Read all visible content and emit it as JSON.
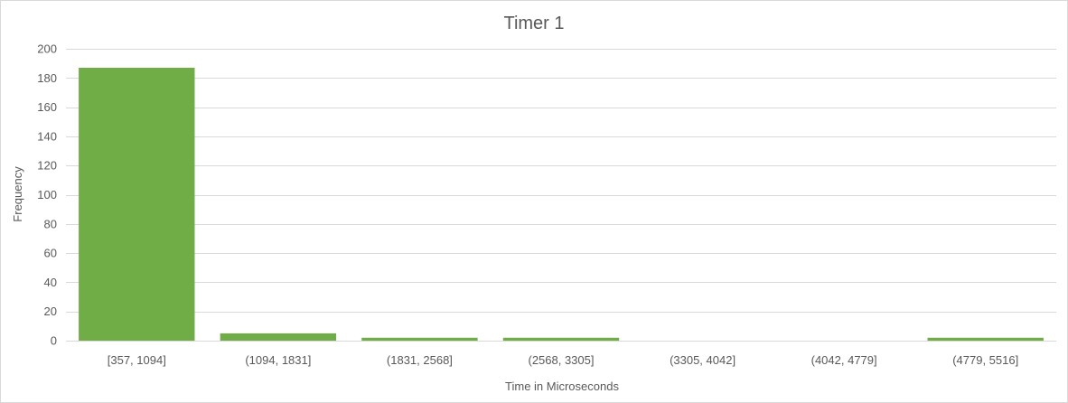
{
  "chart_data": {
    "type": "bar",
    "title": "Timer 1",
    "xlabel": "Time in Microseconds",
    "ylabel": "Frequency",
    "categories": [
      "[357, 1094]",
      "(1094, 1831]",
      "(1831, 2568]",
      "(2568, 3305]",
      "(3305, 4042]",
      "(4042, 4779]",
      "(4779, 5516]"
    ],
    "values": [
      187,
      5,
      2,
      2,
      0,
      0,
      2
    ],
    "ylim": [
      0,
      200
    ],
    "yticks": [
      0,
      20,
      40,
      60,
      80,
      100,
      120,
      140,
      160,
      180,
      200
    ],
    "grid": true,
    "legend": "none",
    "bar_color": "#70ad47",
    "grid_color": "#d9d9d9"
  }
}
